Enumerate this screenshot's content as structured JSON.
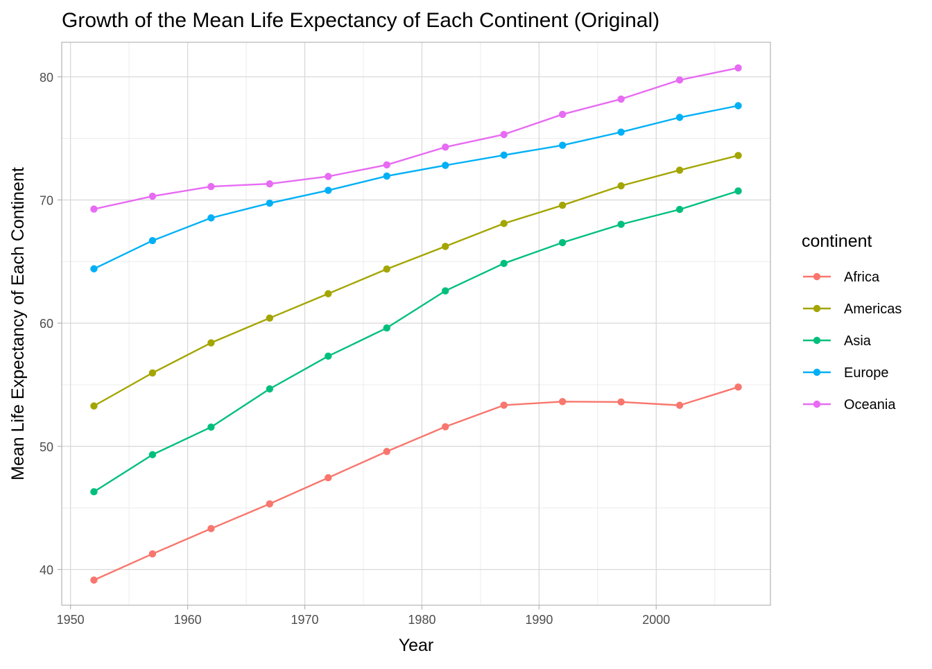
{
  "chart_data": {
    "type": "line",
    "title": "Growth of the Mean Life Expectancy of Each Continent (Original)",
    "xlabel": "Year",
    "ylabel": "Mean Life Expectancy of Each Continent",
    "x": [
      1952,
      1957,
      1962,
      1967,
      1972,
      1977,
      1982,
      1987,
      1992,
      1997,
      2002,
      2007
    ],
    "xlim": [
      1949.25,
      2009.75
    ],
    "ylim": [
      37.1,
      82.8
    ],
    "x_ticks": [
      1950,
      1960,
      1970,
      1980,
      1990,
      2000
    ],
    "y_ticks": [
      40,
      50,
      60,
      70,
      80
    ],
    "x_tick_labels": [
      "1950",
      "1960",
      "1970",
      "1980",
      "1990",
      "2000"
    ],
    "y_tick_labels": [
      "40",
      "50",
      "60",
      "70",
      "80"
    ],
    "grid": true,
    "legend_title": "continent",
    "legend_position": "right",
    "series": [
      {
        "name": "Africa",
        "color": "#F8766D",
        "values": [
          39.14,
          41.27,
          43.32,
          45.33,
          47.45,
          49.58,
          51.59,
          53.34,
          53.63,
          53.6,
          53.33,
          54.81
        ]
      },
      {
        "name": "Americas",
        "color": "#A3A500",
        "values": [
          53.28,
          55.96,
          58.4,
          60.41,
          62.39,
          64.39,
          66.23,
          68.09,
          69.57,
          71.15,
          72.42,
          73.61
        ]
      },
      {
        "name": "Asia",
        "color": "#00BF7D",
        "values": [
          46.31,
          49.32,
          51.56,
          54.66,
          57.32,
          59.61,
          62.62,
          64.85,
          66.54,
          68.02,
          69.23,
          70.73
        ]
      },
      {
        "name": "Europe",
        "color": "#00B0F6",
        "values": [
          64.41,
          66.7,
          68.54,
          69.74,
          70.78,
          71.94,
          72.81,
          73.64,
          74.44,
          75.51,
          76.7,
          77.65
        ]
      },
      {
        "name": "Oceania",
        "color": "#E76BF3",
        "values": [
          69.26,
          70.3,
          71.09,
          71.31,
          71.91,
          72.85,
          74.29,
          75.32,
          76.95,
          78.19,
          79.74,
          80.72
        ]
      }
    ]
  }
}
